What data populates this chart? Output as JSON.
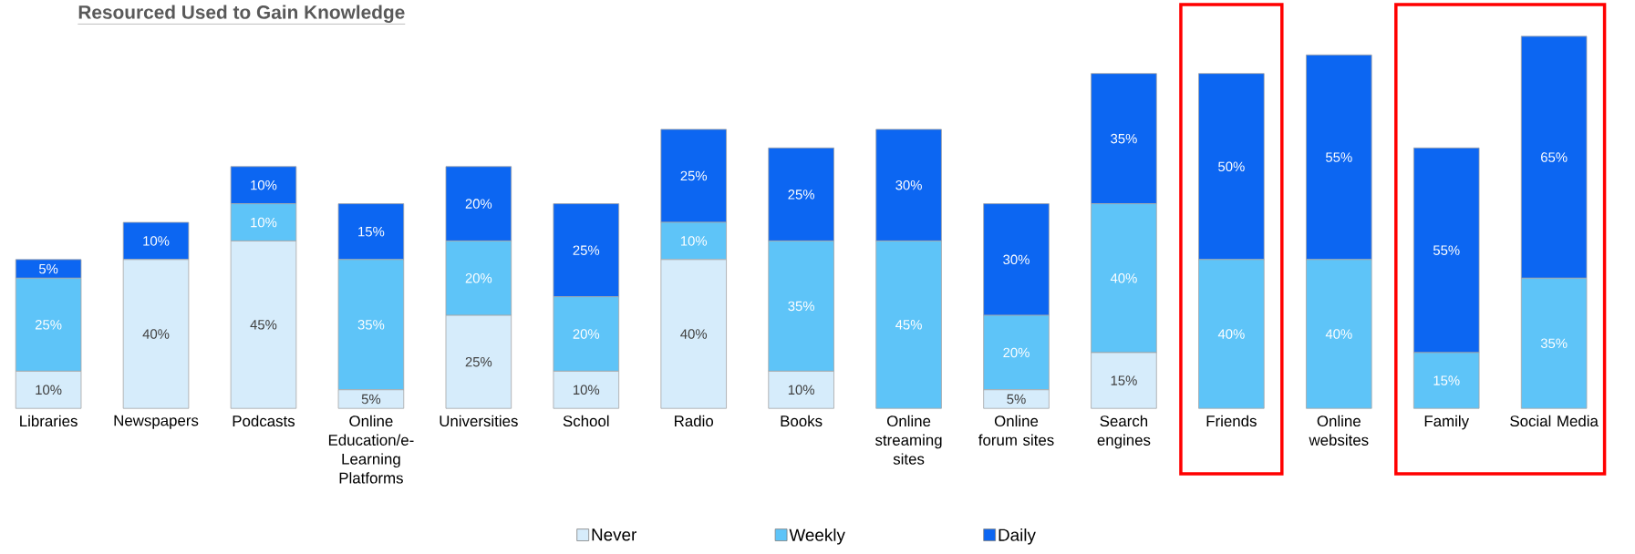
{
  "chart_data": {
    "type": "bar",
    "title": "Resourced Used to Gain Knowledge",
    "categories": [
      "Libraries",
      "Newspapers",
      "Podcasts",
      "Online Education/e-Learning Platforms",
      "Universities",
      "School",
      "Radio",
      "Books",
      "Online streaming sites",
      "Online forum sites",
      "Search engines",
      "Friends",
      "Online websites",
      "Family",
      "Social Media"
    ],
    "stacked": true,
    "legend": "bottom",
    "series": [
      {
        "name": "Never",
        "color": "#d6ecfb",
        "values": [
          10,
          40,
          45,
          5,
          25,
          10,
          40,
          10,
          0,
          5,
          15,
          0,
          0,
          0,
          0
        ],
        "value_labels": [
          "10%",
          "40%",
          "45%",
          "5%",
          "25%",
          "10%",
          "40%",
          "10%",
          null,
          "5%",
          "15%",
          null,
          null,
          null,
          null
        ]
      },
      {
        "name": "Weekly",
        "color": "#5ec4f8",
        "values": [
          25,
          0,
          10,
          35,
          20,
          20,
          10,
          35,
          45,
          20,
          40,
          40,
          40,
          15,
          35
        ],
        "value_labels": [
          "25%",
          null,
          "10%",
          "35%",
          "20%",
          "20%",
          "10%",
          "35%",
          "45%",
          "20%",
          "40%",
          "40%",
          "40%",
          "15%",
          "35%"
        ]
      },
      {
        "name": "Daily",
        "color": "#0c66f2",
        "values": [
          5,
          10,
          10,
          15,
          20,
          25,
          25,
          25,
          30,
          30,
          35,
          50,
          55,
          55,
          65
        ],
        "value_labels": [
          "5%",
          "10%",
          "10%",
          "15%",
          "20%",
          "25%",
          "25%",
          "25%",
          "30%",
          "30%",
          "35%",
          "50%",
          "55%",
          "55%",
          "65%"
        ]
      }
    ]
  }
}
